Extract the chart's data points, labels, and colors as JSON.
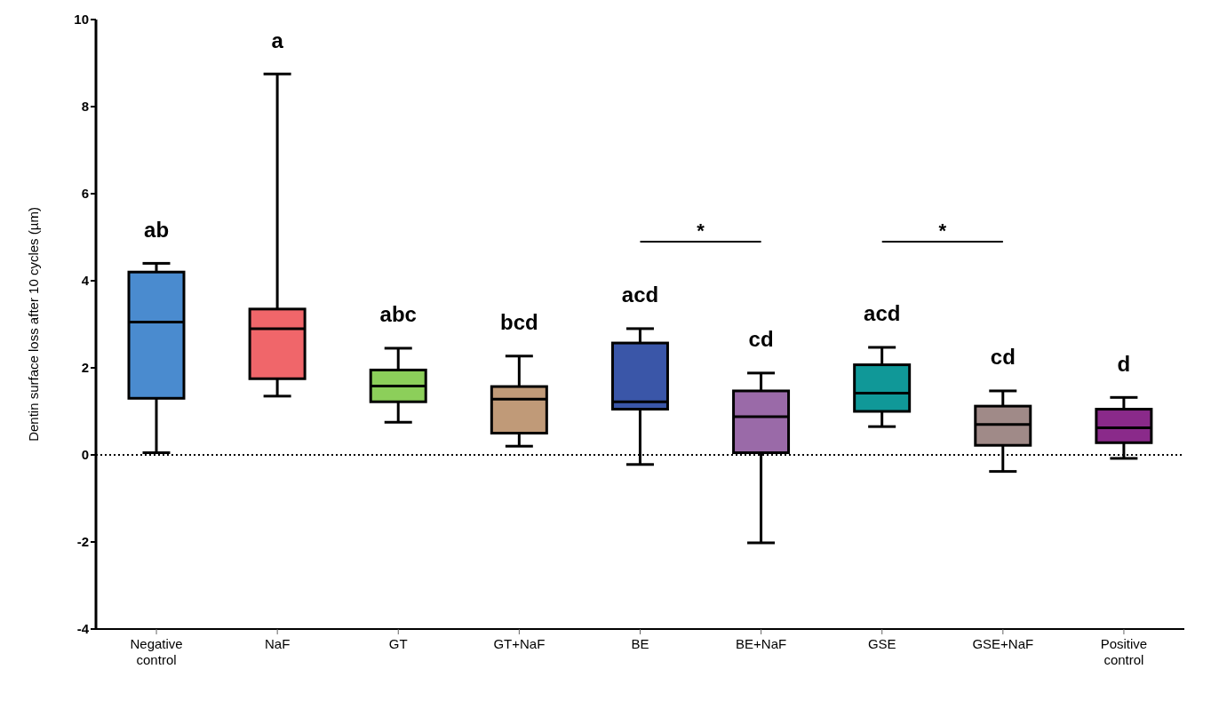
{
  "chart_data": {
    "type": "box",
    "ylabel": "Dentin surface loss after 10 cycles (µm)",
    "categories": [
      "Negative control",
      "NaF",
      "GT",
      "GT+NaF",
      "BE",
      "BE+NaF",
      "GSE",
      "GSE+NaF",
      "Positive control"
    ],
    "colors": [
      "#4a8bcf",
      "#f0666a",
      "#8ccf5a",
      "#c09a78",
      "#3a56a8",
      "#9a6aa8",
      "#109898",
      "#a08a88",
      "#8a2a8a"
    ],
    "boxes": [
      {
        "low": 0.05,
        "q1": 1.3,
        "median": 3.05,
        "q3": 4.2,
        "high": 4.4
      },
      {
        "low": 1.35,
        "q1": 1.75,
        "median": 2.9,
        "q3": 3.35,
        "high": 8.75
      },
      {
        "low": 0.75,
        "q1": 1.22,
        "median": 1.58,
        "q3": 1.95,
        "high": 2.45
      },
      {
        "low": 0.2,
        "q1": 0.5,
        "median": 1.28,
        "q3": 1.57,
        "high": 2.27
      },
      {
        "low": -0.22,
        "q1": 1.05,
        "median": 1.22,
        "q3": 2.57,
        "high": 2.9
      },
      {
        "low": -2.02,
        "q1": 0.05,
        "median": 0.88,
        "q3": 1.47,
        "high": 1.88
      },
      {
        "low": 0.65,
        "q1": 1.0,
        "median": 1.42,
        "q3": 2.07,
        "high": 2.47
      },
      {
        "low": -0.38,
        "q1": 0.22,
        "median": 0.7,
        "q3": 1.12,
        "high": 1.47
      },
      {
        "low": -0.08,
        "q1": 0.28,
        "median": 0.62,
        "q3": 1.05,
        "high": 1.32
      }
    ],
    "ylim": [
      -4,
      10
    ],
    "yticks": [
      -4,
      -2,
      0,
      2,
      4,
      6,
      8,
      10
    ],
    "ref_lines": [
      {
        "axis": "y",
        "value": 0,
        "line_style": "dotted"
      }
    ],
    "annotations": [
      "ab",
      "a",
      "abc",
      "bcd",
      "acd",
      "cd",
      "acd",
      "cd",
      "d",
      "*",
      "*"
    ]
  }
}
